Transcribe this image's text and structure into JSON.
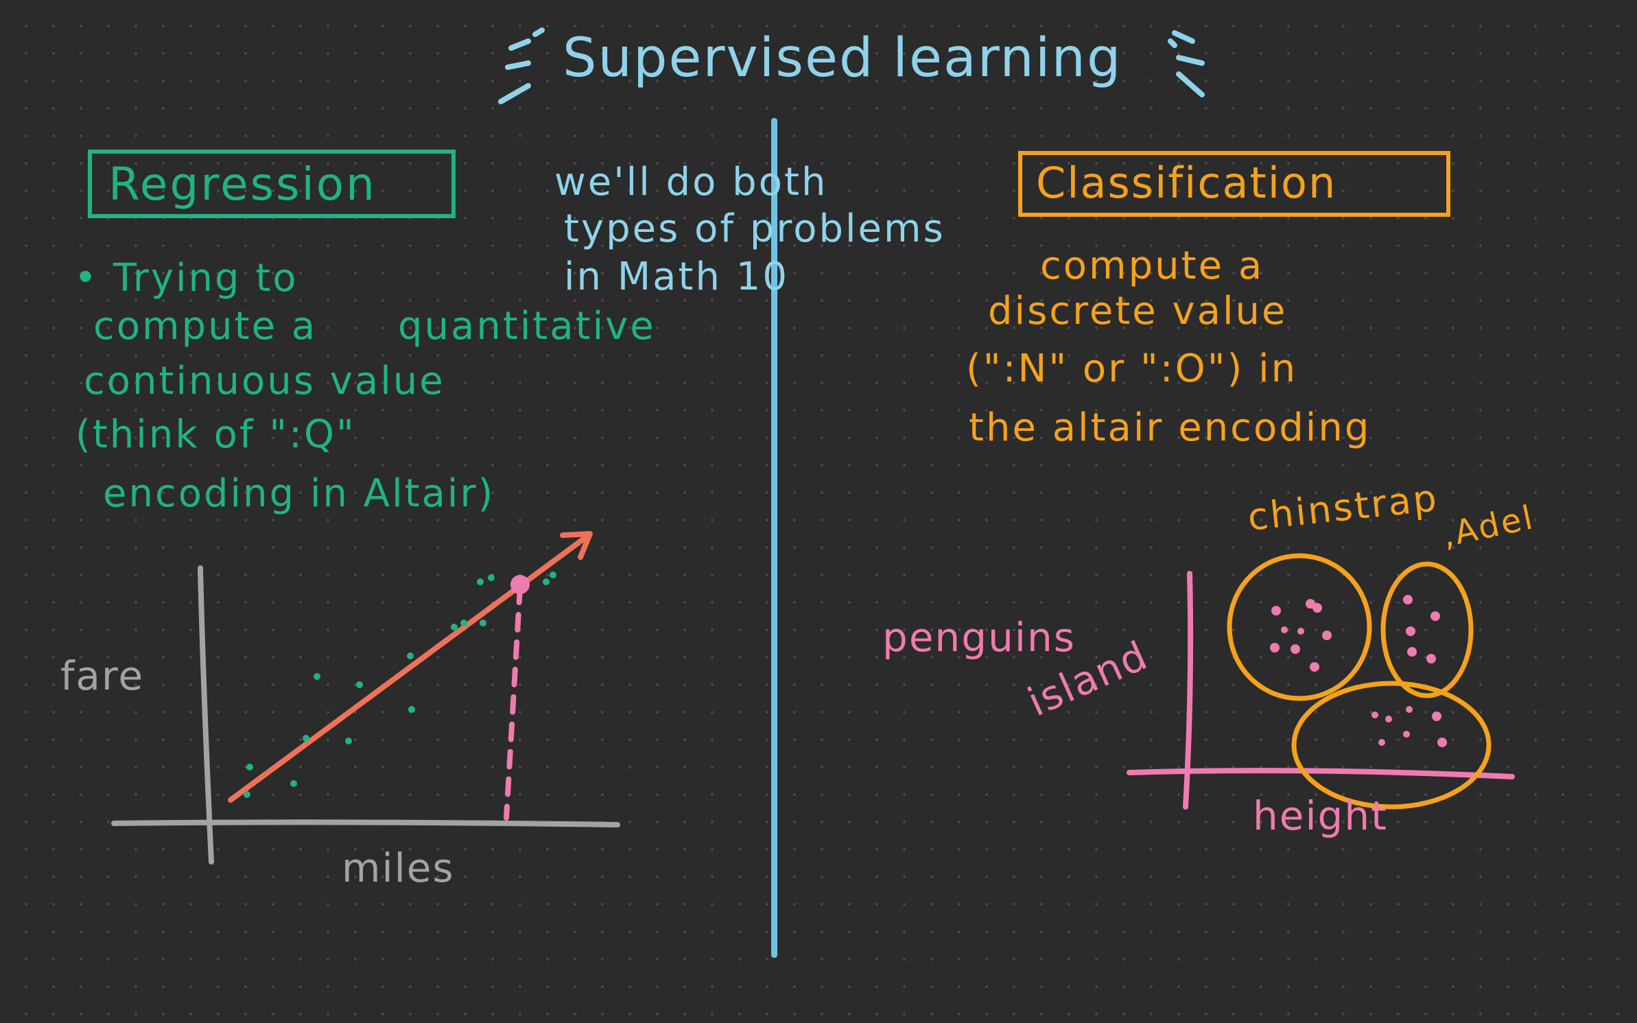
{
  "title": "Supervised learning",
  "regression": {
    "heading": "Regression",
    "lines": [
      "• Trying to",
      "compute a",
      "quantitative",
      "continuous value",
      "(think of \":Q\"",
      "encoding in Altair)"
    ]
  },
  "middle_note": {
    "lines": [
      "we'll do both",
      "types of problems",
      "in Math 10"
    ]
  },
  "classification": {
    "heading": "Classification",
    "lines": [
      "compute a",
      "discrete value",
      "(\":N\" or \":O\") in",
      "the altair encoding"
    ]
  },
  "regression_sketch": {
    "y_label": "fare",
    "x_label": "miles"
  },
  "classification_sketch": {
    "side_label_1": "penguins",
    "side_label_2": "island",
    "x_label": "height",
    "cluster_label_1": "chinstrap",
    "cluster_label_2": ",Adel"
  },
  "colors": {
    "background": "#2b2b2b",
    "blue": "#8fd3ea",
    "green": "#1fb386",
    "orange": "#f5a21b",
    "pink": "#f07bb0",
    "grey": "#a3a3a3",
    "red": "#f0715a"
  }
}
